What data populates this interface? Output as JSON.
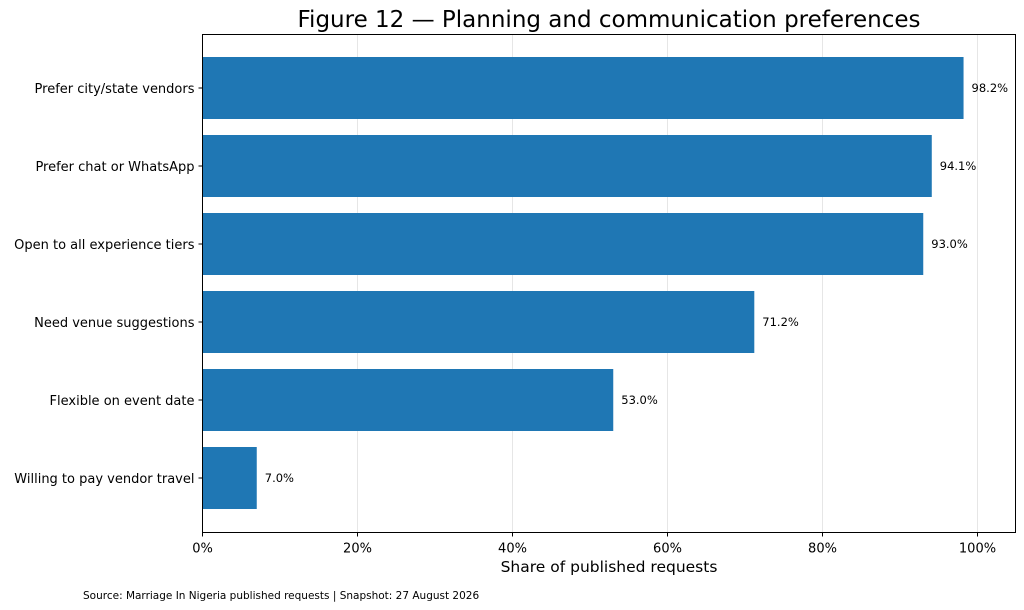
{
  "chart_data": {
    "type": "bar",
    "orientation": "horizontal",
    "title": "Figure 12 — Planning and communication preferences",
    "xlabel": "Share of published requests",
    "ylabel": "",
    "categories": [
      "Prefer city/state vendors",
      "Prefer chat or WhatsApp",
      "Open to all experience tiers",
      "Need venue suggestions",
      "Flexible on event date",
      "Willing to pay vendor travel"
    ],
    "values": [
      98.2,
      94.1,
      93.0,
      71.2,
      53.0,
      7.0
    ],
    "value_labels": [
      "98.2%",
      "94.1%",
      "93.0%",
      "71.2%",
      "53.0%",
      "7.0%"
    ],
    "xlim": [
      0,
      105
    ],
    "xticks": [
      0,
      20,
      40,
      60,
      80,
      100
    ],
    "xtick_labels": [
      "0%",
      "20%",
      "40%",
      "60%",
      "80%",
      "100%"
    ],
    "grid": "vertical",
    "bar_color": "#1f77b4",
    "source": "Source: Marriage In Nigeria published requests | Snapshot: 27 August 2026"
  }
}
